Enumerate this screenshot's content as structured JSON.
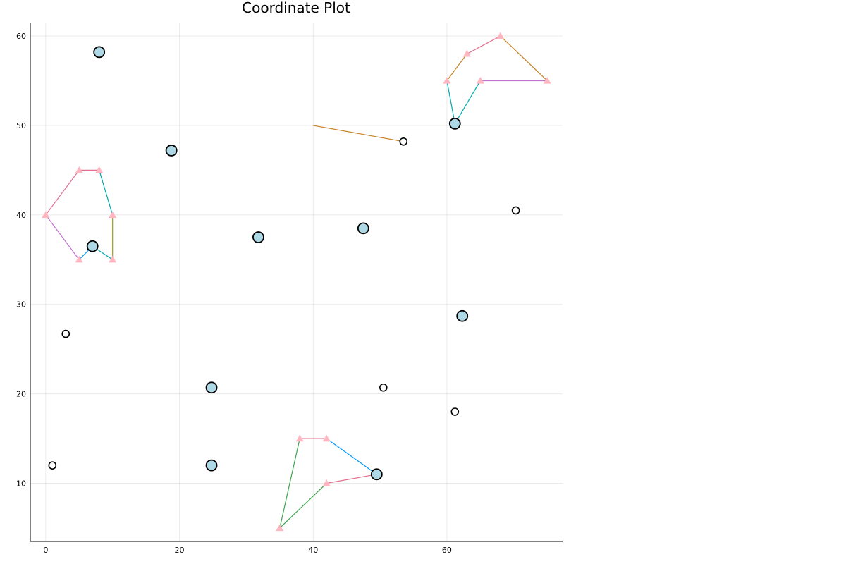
{
  "chart_data": {
    "type": "scatter",
    "title": "Coordinate Plot",
    "xlabel": "",
    "ylabel": "",
    "xlim": [
      -2.3,
      77.3
    ],
    "ylim": [
      3.5,
      61.5
    ],
    "xticks": [
      0,
      20,
      40,
      60
    ],
    "yticks": [
      10,
      20,
      30,
      40,
      50,
      60
    ],
    "grid": true,
    "legend": "none",
    "large_points": [
      {
        "x": 8,
        "y": 58.2
      },
      {
        "x": 18.8,
        "y": 47.2
      },
      {
        "x": 7,
        "y": 36.5
      },
      {
        "x": 31.8,
        "y": 37.5
      },
      {
        "x": 47.5,
        "y": 38.5
      },
      {
        "x": 61.2,
        "y": 50.2
      },
      {
        "x": 62.3,
        "y": 28.7
      },
      {
        "x": 24.8,
        "y": 20.7
      },
      {
        "x": 24.8,
        "y": 12
      },
      {
        "x": 49.5,
        "y": 11
      }
    ],
    "small_points": [
      {
        "x": 53.5,
        "y": 48.2
      },
      {
        "x": 70.3,
        "y": 40.5
      },
      {
        "x": 3,
        "y": 26.7
      },
      {
        "x": 50.5,
        "y": 20.7
      },
      {
        "x": 61.2,
        "y": 18
      },
      {
        "x": 1,
        "y": 12
      }
    ],
    "vertices": [
      {
        "x": 0,
        "y": 40
      },
      {
        "x": 5,
        "y": 45
      },
      {
        "x": 8,
        "y": 45
      },
      {
        "x": 10,
        "y": 40
      },
      {
        "x": 10,
        "y": 35
      },
      {
        "x": 5,
        "y": 35
      },
      {
        "x": 60,
        "y": 55
      },
      {
        "x": 63,
        "y": 58
      },
      {
        "x": 68,
        "y": 60
      },
      {
        "x": 75,
        "y": 55
      },
      {
        "x": 65,
        "y": 55
      },
      {
        "x": 38,
        "y": 15
      },
      {
        "x": 42,
        "y": 15
      },
      {
        "x": 42,
        "y": 10
      },
      {
        "x": 35,
        "y": 5
      }
    ],
    "segments": [
      {
        "x1": 0,
        "y1": 40,
        "x2": 5,
        "y2": 45,
        "color": "#e26f8f"
      },
      {
        "x1": 5,
        "y1": 45,
        "x2": 8,
        "y2": 45,
        "color": "#e26f8f"
      },
      {
        "x1": 8,
        "y1": 45,
        "x2": 10,
        "y2": 40,
        "color": "#00a9ad"
      },
      {
        "x1": 10,
        "y1": 40,
        "x2": 10,
        "y2": 35,
        "color": "#9c9c1e"
      },
      {
        "x1": 10,
        "y1": 35,
        "x2": 7,
        "y2": 36.5,
        "color": "#00a9ad"
      },
      {
        "x1": 7,
        "y1": 36.5,
        "x2": 5,
        "y2": 35,
        "color": "#009af9"
      },
      {
        "x1": 5,
        "y1": 35,
        "x2": 0,
        "y2": 40,
        "color": "#c271d2"
      },
      {
        "x1": 40,
        "y1": 50,
        "x2": 53.5,
        "y2": 48.2,
        "color": "#c68225"
      },
      {
        "x1": 60,
        "y1": 55,
        "x2": 63,
        "y2": 58,
        "color": "#c68225"
      },
      {
        "x1": 63,
        "y1": 58,
        "x2": 68,
        "y2": 60,
        "color": "#e26f8f"
      },
      {
        "x1": 68,
        "y1": 60,
        "x2": 75,
        "y2": 55,
        "color": "#c68225"
      },
      {
        "x1": 75,
        "y1": 55,
        "x2": 65,
        "y2": 55,
        "color": "#c271d2"
      },
      {
        "x1": 65,
        "y1": 55,
        "x2": 61.2,
        "y2": 50.2,
        "color": "#00a9ad"
      },
      {
        "x1": 61.2,
        "y1": 50.2,
        "x2": 60,
        "y2": 55,
        "color": "#00a9ad"
      },
      {
        "x1": 38,
        "y1": 15,
        "x2": 42,
        "y2": 15,
        "color": "#e26f8f"
      },
      {
        "x1": 42,
        "y1": 15,
        "x2": 49.5,
        "y2": 11,
        "color": "#009af9"
      },
      {
        "x1": 49.5,
        "y1": 11,
        "x2": 42,
        "y2": 10,
        "color": "#e26f8f"
      },
      {
        "x1": 42,
        "y1": 10,
        "x2": 35,
        "y2": 5,
        "color": "#3ea44e"
      },
      {
        "x1": 35,
        "y1": 5,
        "x2": 38,
        "y2": 15,
        "color": "#3ea44e"
      }
    ],
    "colors": {
      "large_point_fill": "#add8e6",
      "point_stroke": "#000000",
      "small_point_fill": "#ffffff",
      "vertex_fill": "#ffb6c1"
    }
  }
}
